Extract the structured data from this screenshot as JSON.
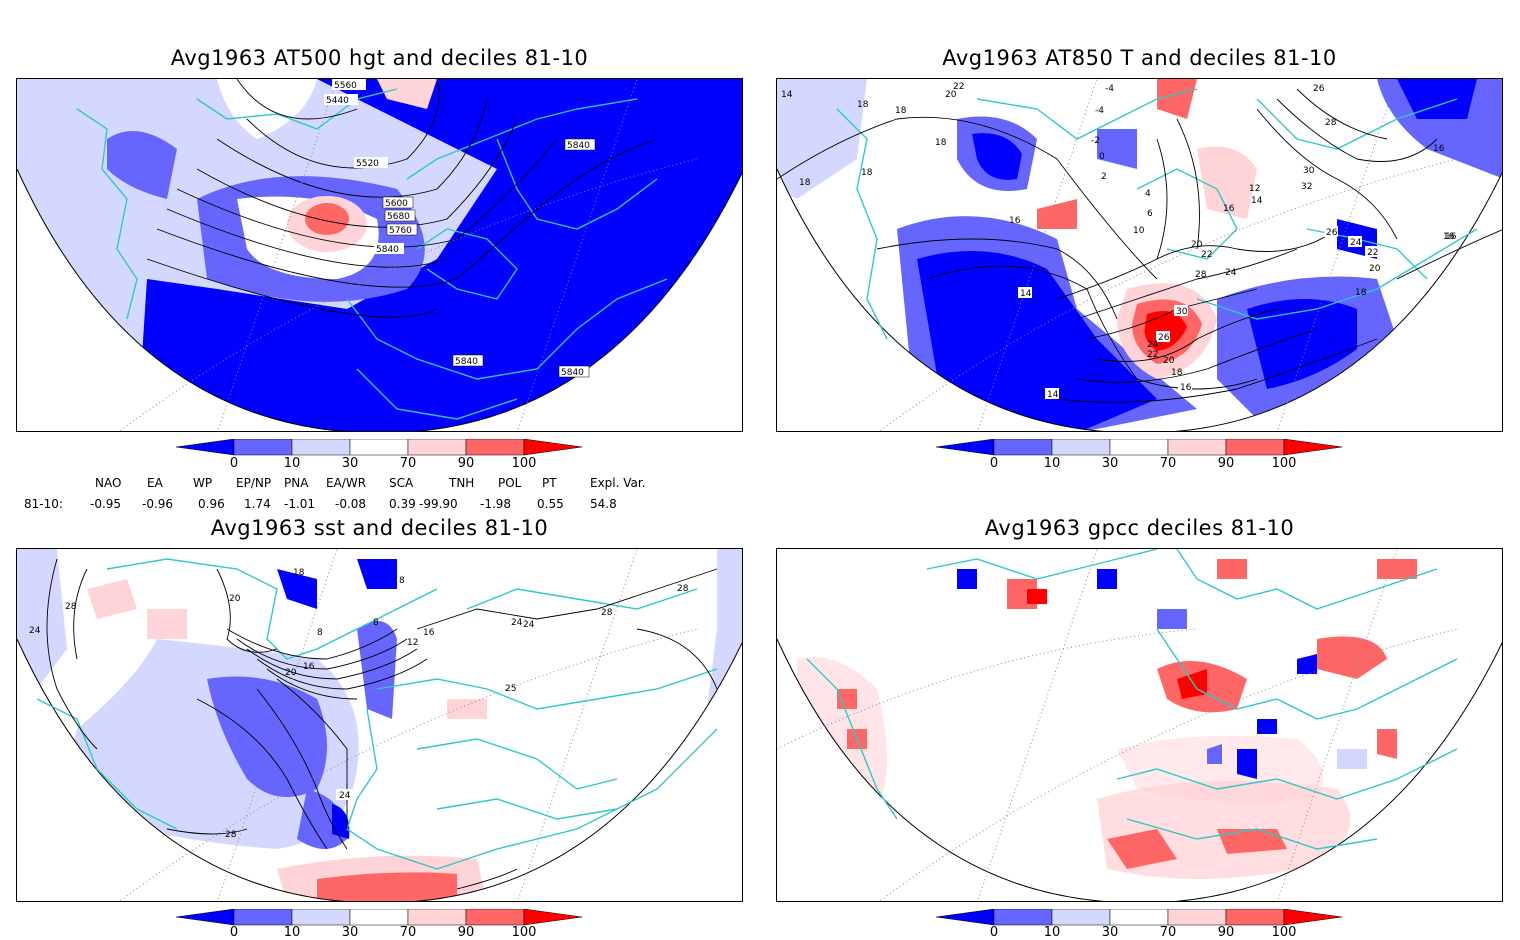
{
  "panels": [
    {
      "title": "Avg1963 AT500 hgt and deciles 81-10",
      "contour_labels": [
        "5560",
        "5440",
        "5520",
        "5600",
        "5680",
        "5760",
        "5840",
        "5840",
        "5840",
        "5840"
      ]
    },
    {
      "title": "Avg1963 AT850 T and deciles 81-10",
      "contour_labels": [
        "14",
        "22",
        "18",
        "18",
        "20",
        "18",
        "-4",
        "-4",
        "-2",
        "0",
        "2",
        "4",
        "6",
        "10",
        "18",
        "16",
        "18",
        "16",
        "26",
        "28",
        "30",
        "32",
        "12",
        "14",
        "16",
        "26",
        "24",
        "22",
        "20",
        "16",
        "20",
        "22",
        "24",
        "28",
        "30",
        "26",
        "24",
        "22",
        "20",
        "18",
        "16",
        "14",
        "14",
        "18",
        "16"
      ]
    },
    {
      "title": "Avg1963 sst and deciles 81-10",
      "contour_labels": [
        "24",
        "28",
        "20",
        "18",
        "8",
        "8",
        "8",
        "12",
        "16",
        "16",
        "20",
        "24",
        "24",
        "28",
        "28",
        "24",
        "28",
        "25"
      ]
    },
    {
      "title": "Avg1963 gpcc deciles 81-10",
      "contour_labels": []
    }
  ],
  "colorbar": {
    "ticks": [
      "0",
      "10",
      "30",
      "70",
      "90",
      "100"
    ],
    "colors": [
      "#0000ff",
      "#6666ff",
      "#d4d8ff",
      "#ffffff",
      "#ffd4d8",
      "#ff6666",
      "#ff0000"
    ]
  },
  "indices": {
    "names": [
      "NAO",
      "EA",
      "WP",
      "EP/NP",
      "PNA",
      "EA/WR",
      "SCA",
      "TNH",
      "POL",
      "PT",
      "Expl. Var."
    ],
    "row_label": "81-10:",
    "values": [
      "-0.95",
      "-0.96",
      "0.96",
      "1.74",
      "-1.01",
      "-0.08",
      "0.39",
      "-99.90",
      "-1.98",
      "0.55",
      "54.8"
    ]
  },
  "colors": {
    "coast": "#30c8c8",
    "blue": "#0000ff",
    "mid_blue": "#6666ff",
    "light_blue": "#d4d8ff",
    "light_red": "#ffd4d8",
    "mid_red": "#ff6666",
    "red": "#ff0000"
  }
}
